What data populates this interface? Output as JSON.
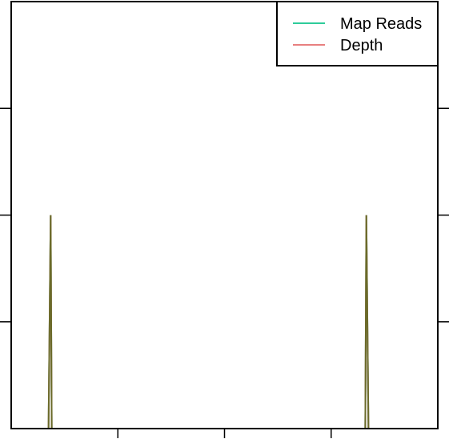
{
  "chart_data": {
    "type": "line",
    "title": "",
    "xlabel": "",
    "ylabel": "",
    "xlim": [
      0,
      4
    ],
    "ylim": [
      0,
      4
    ],
    "x_ticks": [
      1,
      2,
      3
    ],
    "y_ticks": [
      1,
      2,
      3
    ],
    "grid": false,
    "legend_position": "top-right",
    "series": [
      {
        "name": "Map Reads",
        "color": "#2ecc9a",
        "points": [
          [
            0,
            0
          ],
          [
            0.35,
            0
          ],
          [
            0.37,
            2
          ],
          [
            0.38,
            0
          ],
          [
            3.32,
            0
          ],
          [
            3.33,
            2
          ],
          [
            3.35,
            0
          ],
          [
            4,
            0
          ]
        ]
      },
      {
        "name": "Depth",
        "color": "#e88080",
        "points": [
          [
            0,
            0
          ],
          [
            0.35,
            0
          ],
          [
            0.37,
            2
          ],
          [
            0.38,
            0
          ],
          [
            3.32,
            0
          ],
          [
            3.33,
            2
          ],
          [
            3.35,
            0
          ],
          [
            4,
            0
          ]
        ]
      }
    ],
    "overlap_color": "#6b6b2a"
  }
}
